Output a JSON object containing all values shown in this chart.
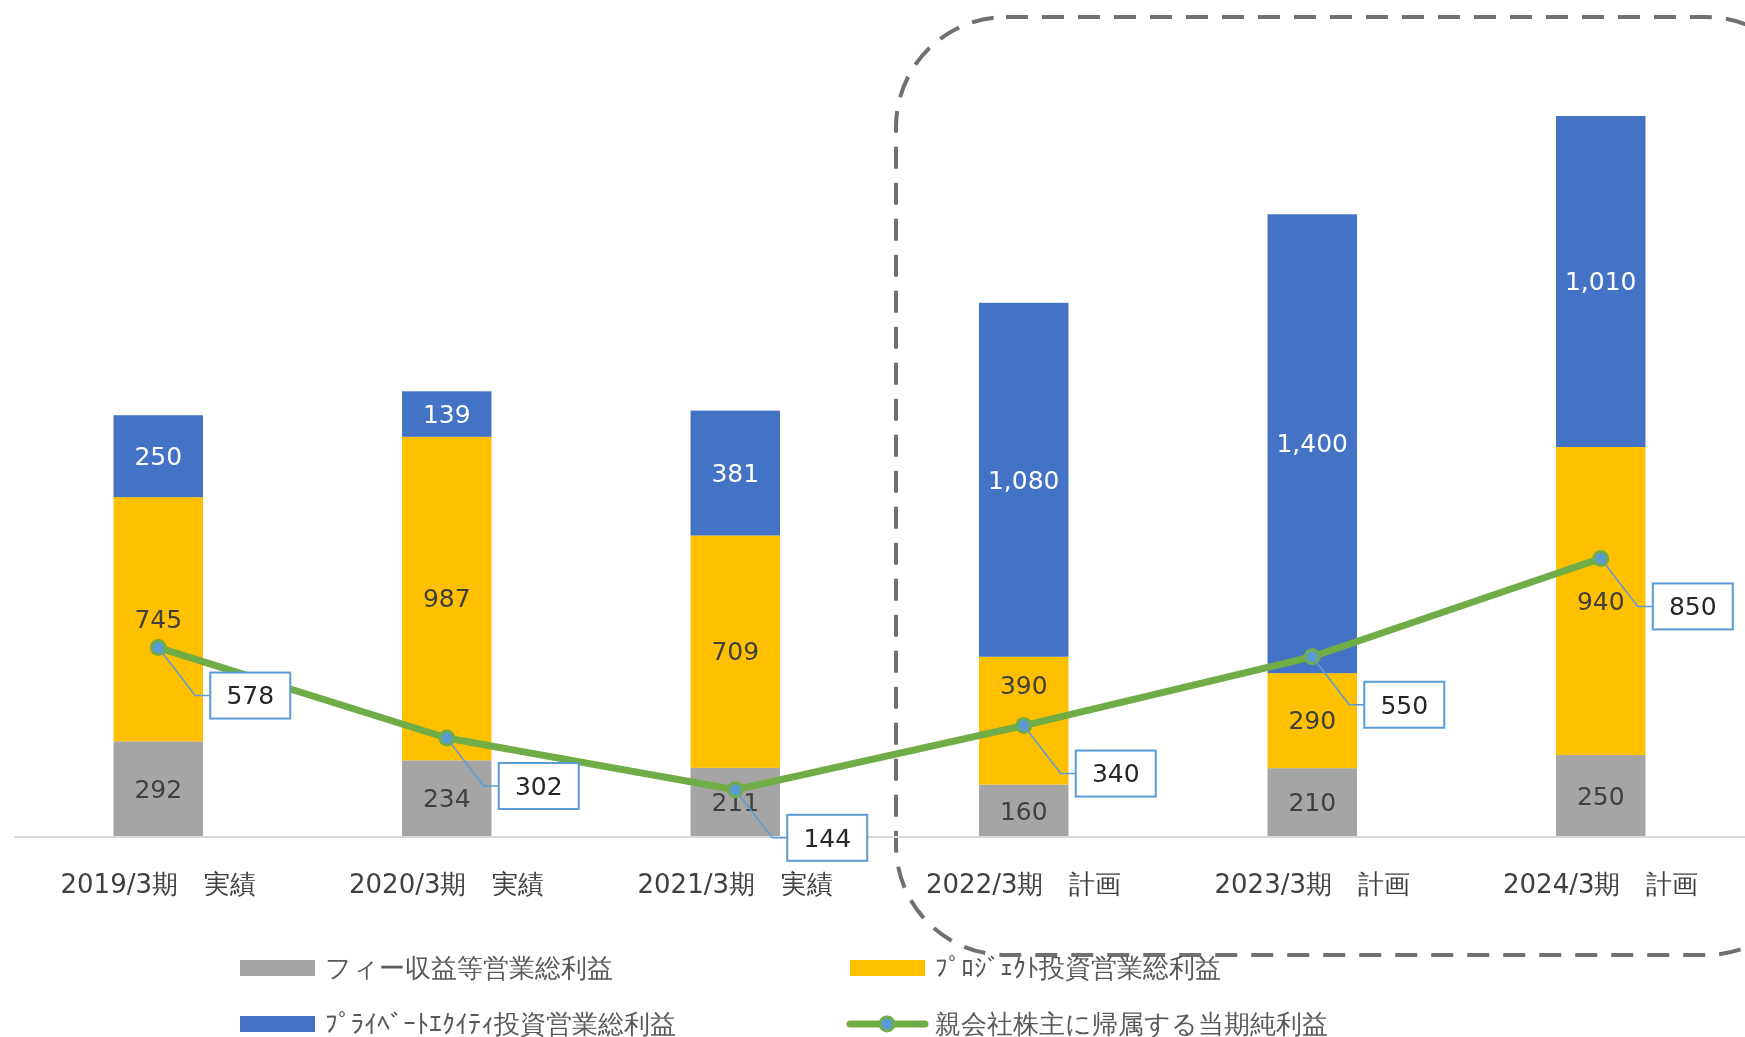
{
  "chart_data": {
    "type": "bar",
    "stacked": true,
    "legend": "bottom",
    "categories": [
      "2019/3期　実績",
      "2020/3期　実績",
      "2021/3期　実績",
      "2022/3期　計画",
      "2023/3期　計画",
      "2024/3期　計画"
    ],
    "series": [
      {
        "name": "フィー収益等営業総利益",
        "color": "#a5a5a5",
        "values": [
          292,
          234,
          211,
          160,
          210,
          250
        ],
        "value_labels": [
          "292",
          "234",
          "211",
          "160",
          "210",
          "250"
        ]
      },
      {
        "name": "ﾌﾟﾛｼﾞｪｸﾄ投資営業総利益",
        "color": "#ffc000",
        "values": [
          745,
          987,
          709,
          390,
          290,
          940
        ],
        "value_labels": [
          "745",
          "987",
          "709",
          "390",
          "290",
          "940"
        ]
      },
      {
        "name": "ﾌﾟﾗｲﾍﾞｰﾄｴｸｲﾃｨ投資営業総利益",
        "color": "#4472c4",
        "values": [
          250,
          139,
          381,
          1080,
          1400,
          1010
        ],
        "value_labels": [
          "250",
          "139",
          "381",
          "1,080",
          "1,400",
          "1,010"
        ]
      },
      {
        "name": "親会社株主に帰属する当期純利益",
        "type": "line",
        "color": "#70ad47",
        "marker": "circle",
        "values": [
          578,
          302,
          144,
          340,
          550,
          850
        ],
        "value_labels": [
          "578",
          "302",
          "144",
          "340",
          "550",
          "850"
        ]
      }
    ]
  }
}
